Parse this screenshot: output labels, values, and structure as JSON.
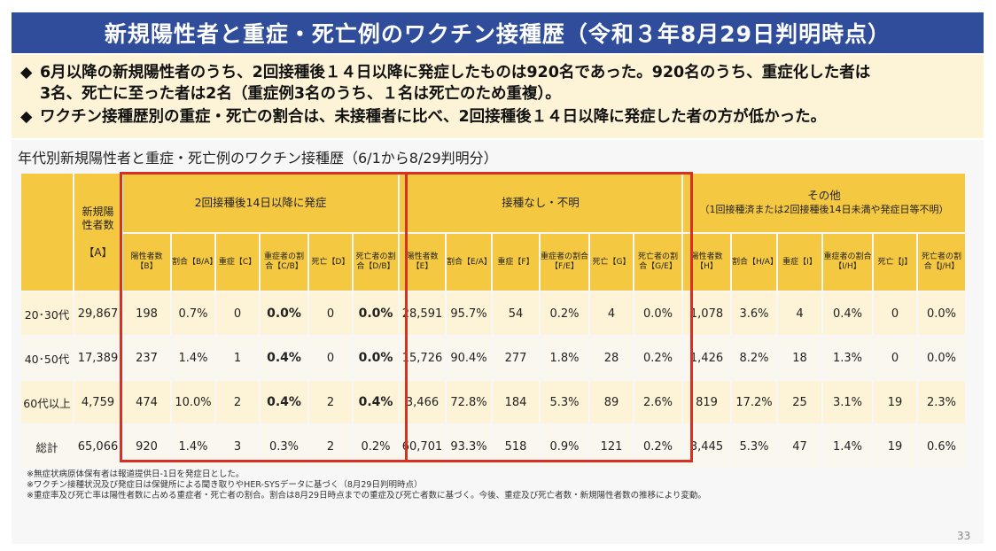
{
  "title": "新規陽性者と重症・死亡例のワクチン接種歴（令和３年8月29日判明時点）",
  "summary": {
    "bullet_mark": "◆",
    "b1_line1": "6月以降の新規陽性者のうち、2回接種後１４日以降に発症したものは920名であった。920名のうち、重症化した者は",
    "b1_line2": "3名、死亡に至った者は2名（重症例3名のうち、１名は死亡のため重複）。",
    "b2": "ワクチン接種歴別の重症・死亡の割合は、未接種者に比べ、2回接種後１４日以降に発症した者の方が低かった。"
  },
  "subtitle": "年代別新規陽性者と重症・死亡例のワクチン接種歴（6/1から8/29判明分）",
  "table": {
    "col_new": "新規陽性者数",
    "col_new_key": "【A】",
    "groups": {
      "g1": "2回接種後14日以降に発症",
      "g2": "接種なし・不明",
      "g3_line1": "その他",
      "g3_line2": "（1回接種済または2回接種後14日未満や発症日等不明）"
    },
    "sub": {
      "g1": [
        "陽性者数【B】",
        "割合【B/A】",
        "重症【C】",
        "重症者の割合【C/B】",
        "死亡【D】",
        "死亡者の割合【D/B】"
      ],
      "g2": [
        "陽性者数【E】",
        "割合【E/A】",
        "重症【F】",
        "重症者の割合【F/E】",
        "死亡【G】",
        "死亡者の割合【G/E】"
      ],
      "g3": [
        "陽性者数【H】",
        "割合【H/A】",
        "重症【I】",
        "重症者の割合【I/H】",
        "死亡【J】",
        "死亡者の割合【J/H】"
      ]
    },
    "rows": [
      {
        "label": "20･30代",
        "a": "29,867",
        "g1": [
          "198",
          "0.7%",
          "0",
          "0.0%",
          "0",
          "0.0%"
        ],
        "g2": [
          "28,591",
          "95.7%",
          "54",
          "0.2%",
          "4",
          "0.0%"
        ],
        "g3": [
          "1,078",
          "3.6%",
          "4",
          "0.4%",
          "0",
          "0.0%"
        ]
      },
      {
        "label": "40･50代",
        "a": "17,389",
        "g1": [
          "237",
          "1.4%",
          "1",
          "0.4%",
          "0",
          "0.0%"
        ],
        "g2": [
          "15,726",
          "90.4%",
          "277",
          "1.8%",
          "28",
          "0.2%"
        ],
        "g3": [
          "1,426",
          "8.2%",
          "18",
          "1.3%",
          "0",
          "0.0%"
        ]
      },
      {
        "label": "60代以上",
        "a": "4,759",
        "g1": [
          "474",
          "10.0%",
          "2",
          "0.4%",
          "2",
          "0.4%"
        ],
        "g2": [
          "3,466",
          "72.8%",
          "184",
          "5.3%",
          "89",
          "2.6%"
        ],
        "g3": [
          "819",
          "17.2%",
          "25",
          "3.1%",
          "19",
          "2.3%"
        ]
      },
      {
        "label": "総計",
        "a": "65,066",
        "g1": [
          "920",
          "1.4%",
          "3",
          "0.3%",
          "2",
          "0.2%"
        ],
        "g2": [
          "60,701",
          "93.3%",
          "518",
          "0.9%",
          "121",
          "0.2%"
        ],
        "g3": [
          "3,445",
          "5.3%",
          "47",
          "1.4%",
          "19",
          "0.6%"
        ]
      }
    ]
  },
  "notes": [
    "※無症状病原体保有者は報道提供日-1日を発症日とした。",
    "※ワクチン接種状況及び発症日は保健所による聞き取りやHER-SYSデータに基づく（8月29日判明時点）",
    "※重症率及び死亡率は陽性者数に占める重症者・死亡者の割合。割合は8月29日時点までの重症及び死亡者数に基づく。今後、重症及び死亡者数・新規陽性者数の推移により変動。"
  ],
  "page_number": "33",
  "colors": {
    "title_bg": "#2f4d9a",
    "header_bg": "#f5c842",
    "summary_bg": "#fdf3d6",
    "highlight_border": "#d93025"
  }
}
